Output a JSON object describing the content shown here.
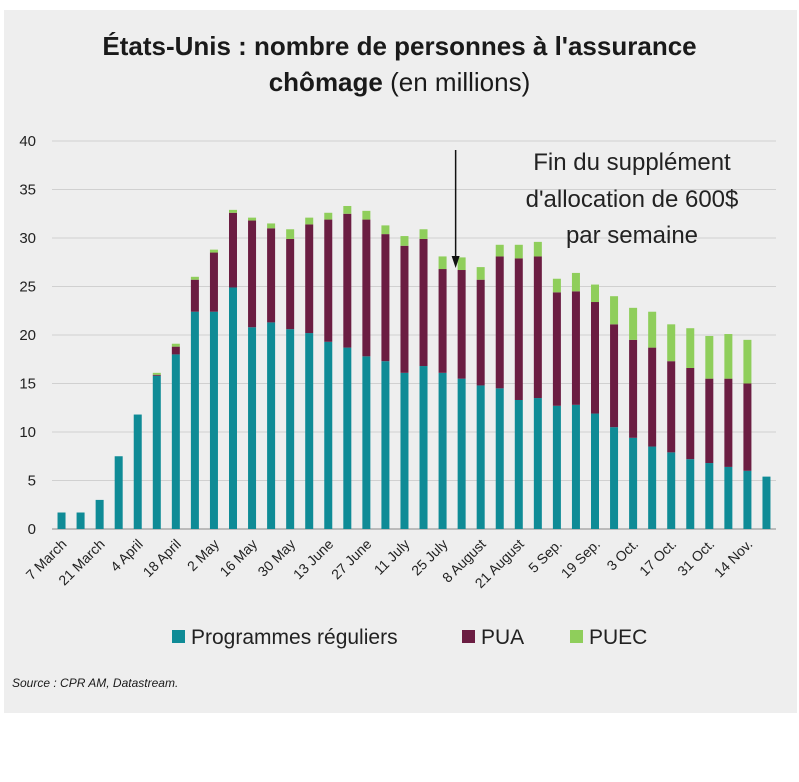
{
  "chart_data": {
    "type": "bar",
    "stacked": true,
    "title_bold": "États-Unis : nombre de personnes à l'assurance chômage",
    "title_rest": "(en millions)",
    "ylim": [
      0,
      40
    ],
    "yticks": [
      0,
      5,
      10,
      15,
      20,
      25,
      30,
      35,
      40
    ],
    "grid": true,
    "legend_position": "bottom",
    "xtick_labels": [
      "7 March",
      "21 March",
      "4 April",
      "18 April",
      "2 May",
      "16 May",
      "30 May",
      "13 June",
      "27 June",
      "11 July",
      "25 July",
      "8 August",
      "21 August",
      "5 Sep.",
      "19 Sep.",
      "3 Oct.",
      "17 Oct.",
      "31 Oct.",
      "14 Nov."
    ],
    "series": [
      {
        "name": "Programmes réguliers",
        "color": "#0f8b96",
        "values": [
          1.7,
          1.7,
          3.0,
          7.5,
          11.8,
          15.8,
          18.0,
          22.4,
          22.4,
          24.9,
          20.8,
          21.3,
          20.6,
          20.2,
          19.3,
          18.7,
          17.8,
          17.3,
          16.1,
          16.8,
          16.1,
          15.5,
          14.8,
          14.5,
          13.3,
          13.5,
          12.7,
          12.8,
          11.9,
          10.5,
          9.4,
          8.5,
          7.9,
          7.2,
          6.8,
          6.4,
          6.0,
          5.4
        ]
      },
      {
        "name": "PUA",
        "color": "#6b1d42",
        "values": [
          0,
          0,
          0,
          0,
          0,
          0.1,
          0.8,
          3.3,
          6.1,
          7.7,
          11.0,
          9.7,
          9.3,
          11.2,
          12.6,
          13.8,
          14.1,
          13.1,
          13.1,
          13.1,
          10.7,
          11.2,
          10.9,
          13.6,
          14.6,
          14.6,
          11.7,
          11.7,
          11.5,
          10.6,
          10.1,
          10.2,
          9.4,
          9.4,
          8.7,
          9.1,
          9.0,
          0
        ]
      },
      {
        "name": "PUEC",
        "color": "#8fce5b",
        "values": [
          0,
          0,
          0,
          0,
          0,
          0.2,
          0.3,
          0.3,
          0.3,
          0.3,
          0.3,
          0.5,
          1.0,
          0.7,
          0.7,
          0.8,
          0.9,
          0.9,
          1.0,
          1.0,
          1.3,
          1.3,
          1.3,
          1.2,
          1.4,
          1.5,
          1.4,
          1.9,
          1.8,
          2.9,
          3.3,
          3.7,
          3.8,
          4.1,
          4.4,
          4.6,
          4.5,
          0
        ]
      }
    ],
    "annotation": {
      "lines": [
        "Fin du supplément",
        "d'allocation de 600$",
        "par semaine"
      ],
      "arrow_bar_index": 21
    }
  },
  "source": "Source : CPR AM, Datastream."
}
